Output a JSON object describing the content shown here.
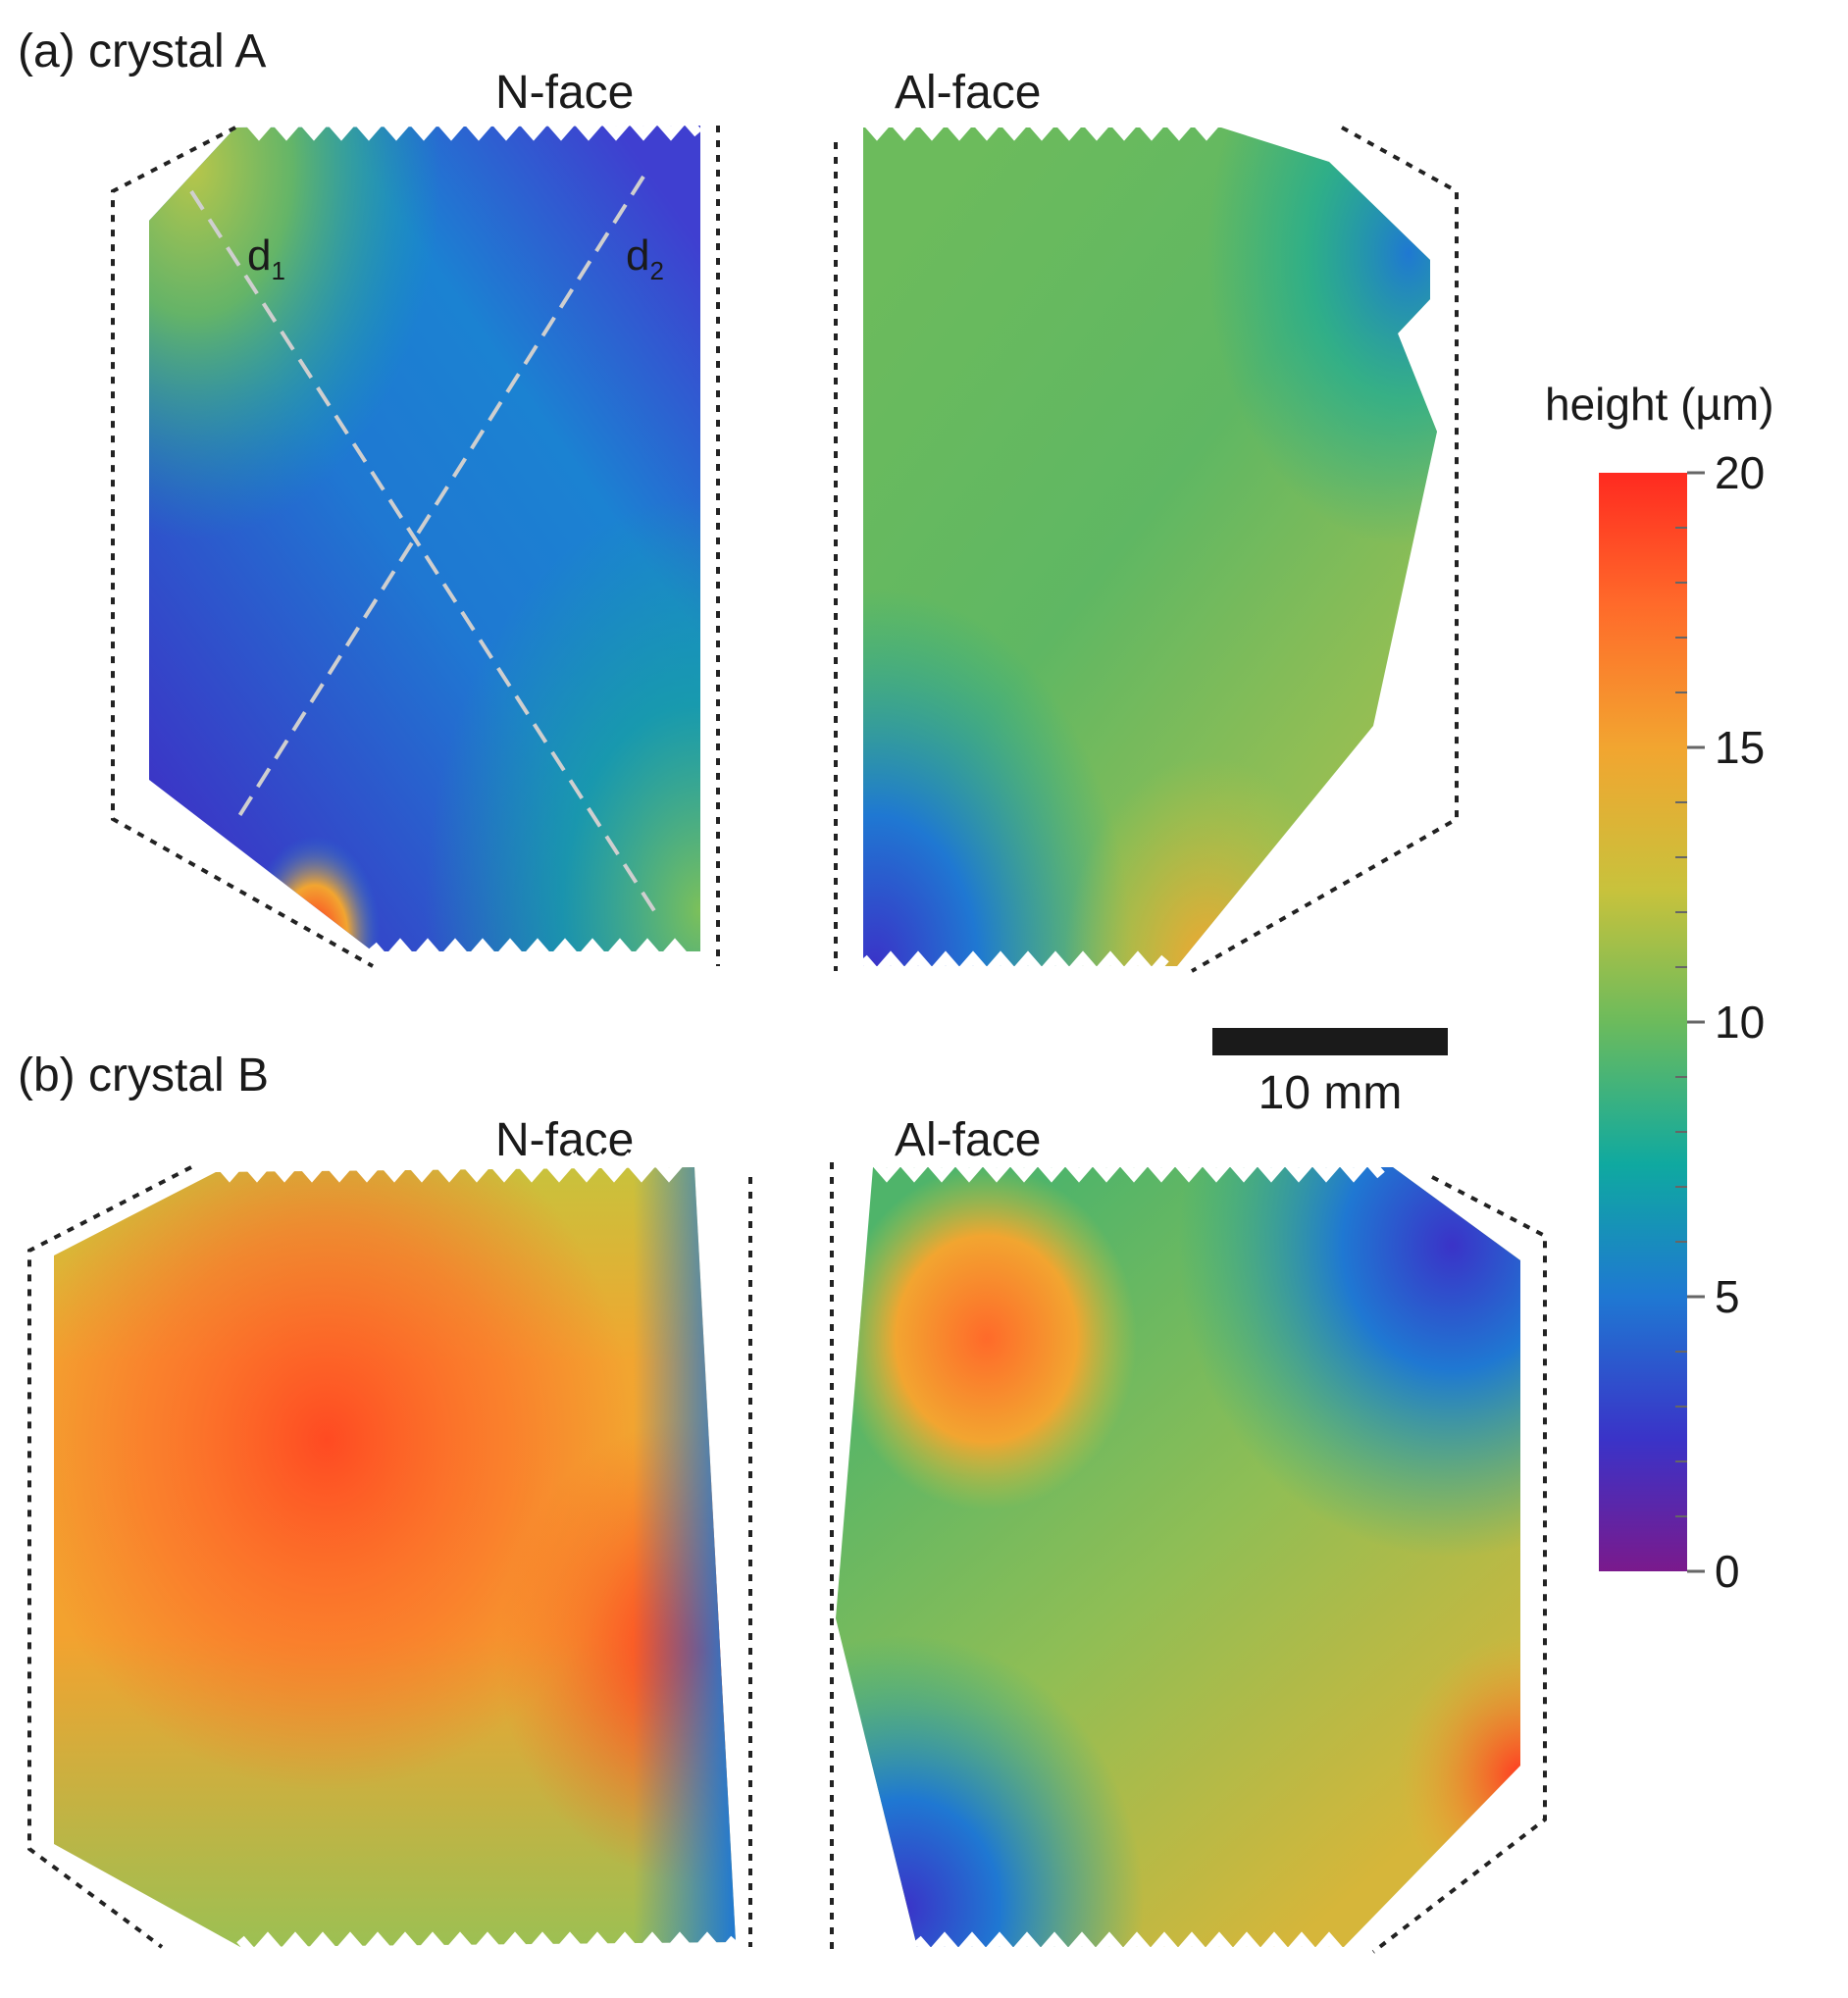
{
  "panels": [
    {
      "label": "(a) crystal A",
      "left_title": "N-face",
      "right_title": "Al-face"
    },
    {
      "label": "(b) crystal B",
      "left_title": "N-face",
      "right_title": "Al-face"
    }
  ],
  "diagonals": {
    "d1": "d",
    "d1_sub": "1",
    "d2": "d",
    "d2_sub": "2"
  },
  "scalebar": {
    "label": "10 mm"
  },
  "colorbar": {
    "title": "height (µm)",
    "ticks": [
      "20",
      "15",
      "10",
      "5",
      "0"
    ],
    "colors": [
      "#7a1a8c",
      "#3a33c8",
      "#1f78d2",
      "#0fa9a0",
      "#6cbb5c",
      "#c8c23c",
      "#f2a530",
      "#ff6a2a",
      "#ff2a20"
    ]
  }
}
